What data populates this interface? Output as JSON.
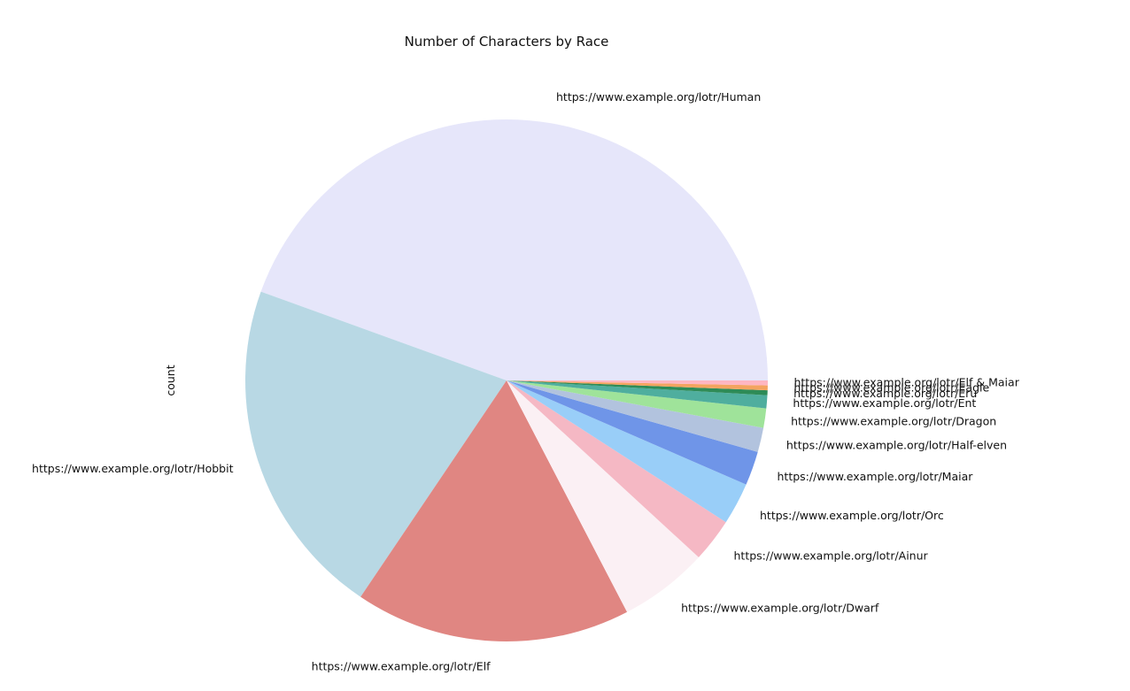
{
  "chart_data": {
    "type": "pie",
    "title": "Number of Characters by Race",
    "ylabel": "count",
    "start_angle_deg": 0,
    "direction": "counterclockwise",
    "slices": [
      {
        "label": "https://www.example.org/lotr/Human",
        "value": 44.3,
        "color": "#e6e6fa"
      },
      {
        "label": "https://www.example.org/lotr/Hobbit",
        "value": 21.0,
        "color": "#b8d8e4"
      },
      {
        "label": "https://www.example.org/lotr/Elf",
        "value": 17.0,
        "color": "#e08682"
      },
      {
        "label": "https://www.example.org/lotr/Dwarf",
        "value": 5.5,
        "color": "#fbf0f4"
      },
      {
        "label": "https://www.example.org/lotr/Ainur",
        "value": 2.7,
        "color": "#f5b8c4"
      },
      {
        "label": "https://www.example.org/lotr/Orc",
        "value": 2.6,
        "color": "#99cef8"
      },
      {
        "label": "https://www.example.org/lotr/Maiar",
        "value": 2.1,
        "color": "#6f95e8"
      },
      {
        "label": "https://www.example.org/lotr/Half-elven",
        "value": 1.5,
        "color": "#b2c3de"
      },
      {
        "label": "https://www.example.org/lotr/Dragon",
        "value": 1.2,
        "color": "#9fe39a"
      },
      {
        "label": "https://www.example.org/lotr/Ent",
        "value": 0.8,
        "color": "#4fae9e"
      },
      {
        "label": "https://www.example.org/lotr/Eru",
        "value": 0.3,
        "color": "#2e8b57"
      },
      {
        "label": "https://www.example.org/lotr/Eagle",
        "value": 0.3,
        "color": "#f4a460"
      },
      {
        "label": "https://www.example.org/lotr/Elf & Maiar",
        "value": 0.3,
        "color": "#ffb6c1"
      }
    ]
  }
}
